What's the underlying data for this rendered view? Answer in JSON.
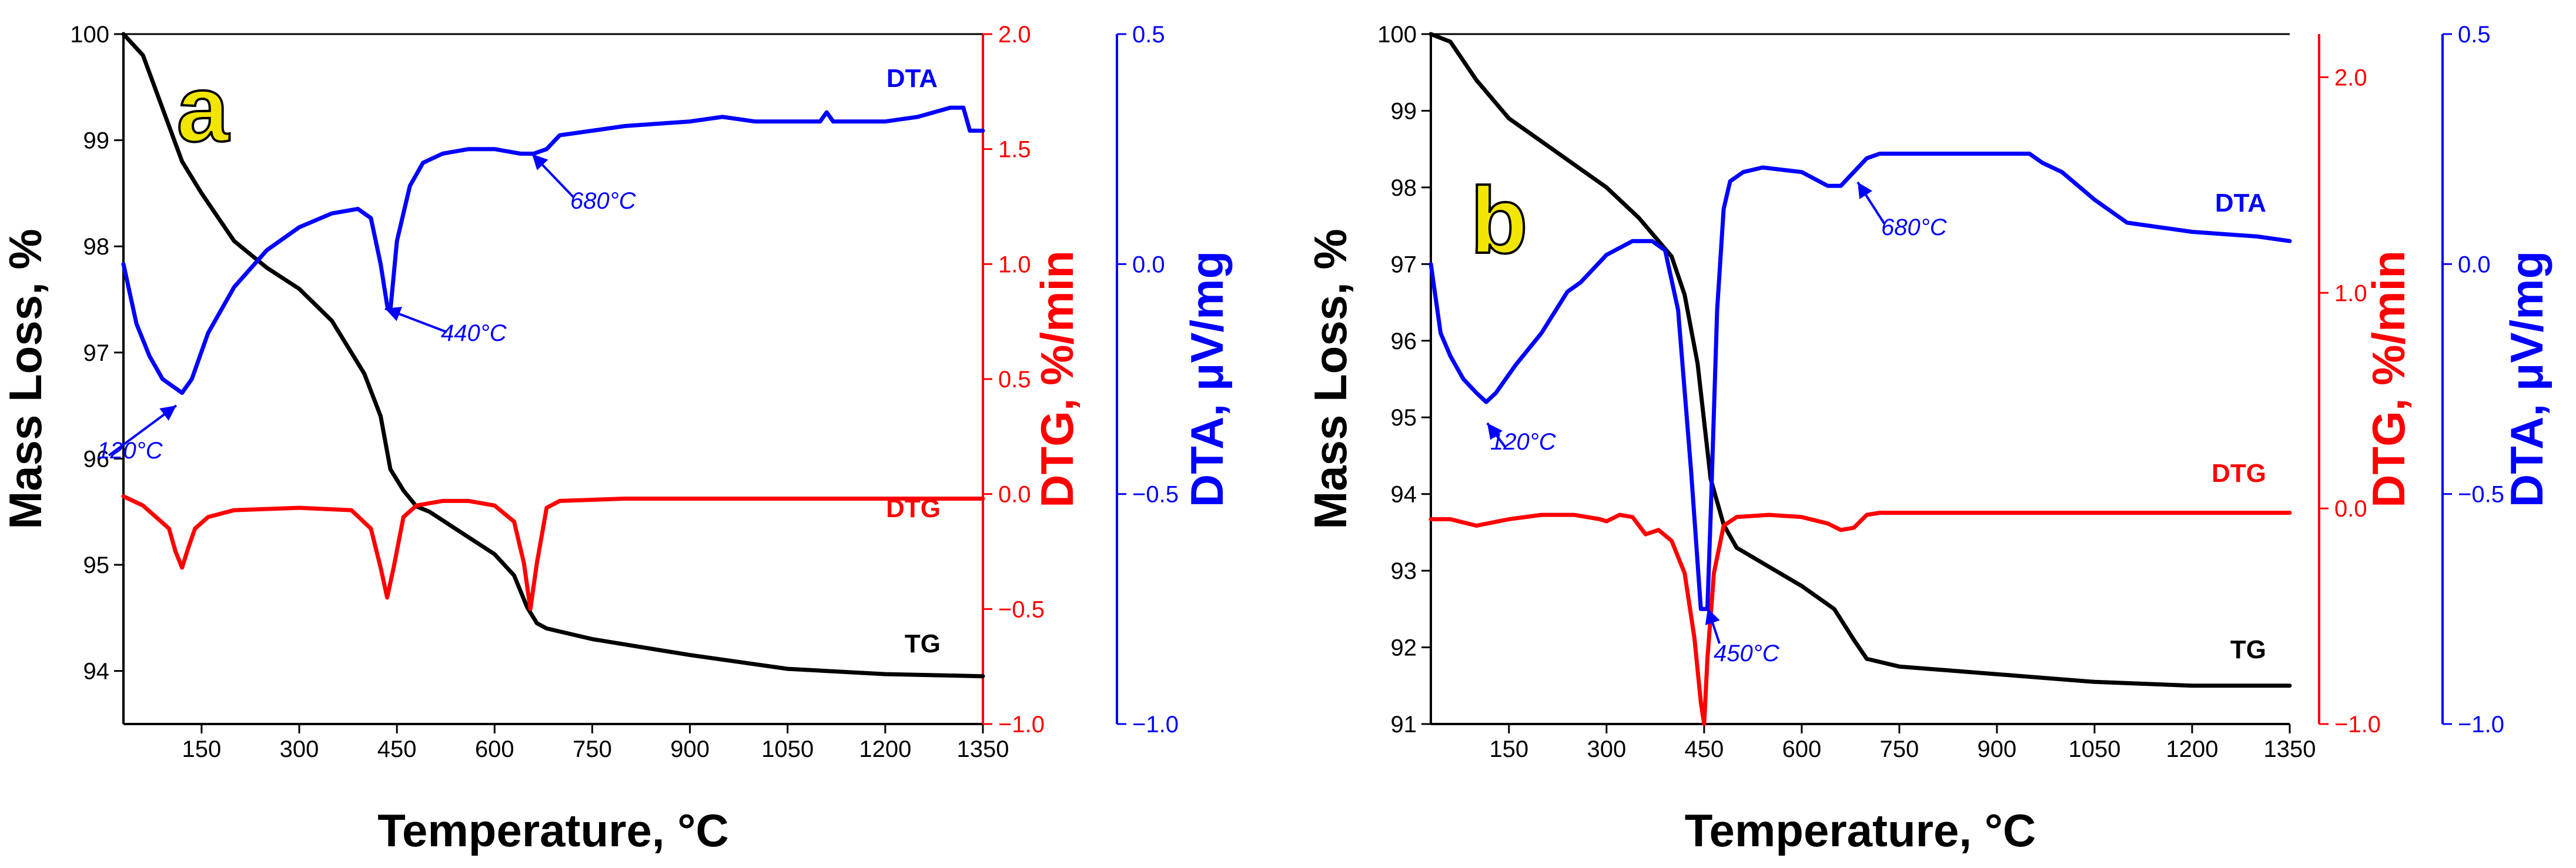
{
  "colors": {
    "tg": "#000000",
    "dtg": "#ff0000",
    "dta": "#0000ff",
    "panel_letter": "#f2e600"
  },
  "chart_data": [
    {
      "type": "line",
      "panel_label": "a",
      "xlabel": "Temperature, °C",
      "ylabels": {
        "tg": "Mass Loss, %",
        "dtg": "DTG, %/min",
        "dta": "DTA, μV/mg"
      },
      "xlim": [
        30,
        1350
      ],
      "x_ticks": [
        150,
        300,
        450,
        600,
        750,
        900,
        1050,
        1200,
        1350
      ],
      "tg_axis": {
        "ylim": [
          93.5,
          100
        ],
        "ticks": [
          94,
          95,
          96,
          97,
          98,
          99,
          100
        ]
      },
      "dtg_axis": {
        "ylim": [
          -1.0,
          2.0
        ],
        "ticks": [
          -1.0,
          -0.5,
          0.0,
          0.5,
          1.0,
          1.5,
          2.0
        ],
        "tick_labels": [
          "−1.0",
          "−0.5",
          "0.0",
          "0.5",
          "1.0",
          "1.5",
          "2.0"
        ]
      },
      "dta_axis": {
        "ylim": [
          -1.0,
          0.5
        ],
        "ticks": [
          -1.0,
          -0.5,
          0.0,
          0.5
        ],
        "tick_labels": [
          "−1.0",
          "−0.5",
          "0.0",
          "0.5"
        ]
      },
      "series": [
        {
          "name": "TG",
          "axis": "tg",
          "x": [
            30,
            60,
            90,
            120,
            150,
            200,
            250,
            300,
            350,
            400,
            425,
            440,
            460,
            480,
            500,
            550,
            600,
            630,
            650,
            665,
            680,
            750,
            900,
            1050,
            1200,
            1350
          ],
          "y": [
            100,
            99.8,
            99.3,
            98.8,
            98.5,
            98.05,
            97.8,
            97.6,
            97.3,
            96.8,
            96.4,
            95.9,
            95.7,
            95.55,
            95.5,
            95.3,
            95.1,
            94.9,
            94.6,
            94.45,
            94.4,
            94.3,
            94.15,
            94.02,
            93.97,
            93.95
          ]
        },
        {
          "name": "DTG",
          "axis": "dtg",
          "x": [
            30,
            60,
            100,
            110,
            120,
            130,
            140,
            160,
            200,
            300,
            380,
            410,
            425,
            435,
            445,
            460,
            480,
            520,
            560,
            600,
            630,
            645,
            655,
            665,
            680,
            700,
            800,
            1000,
            1350
          ],
          "y": [
            -0.01,
            -0.05,
            -0.15,
            -0.25,
            -0.32,
            -0.23,
            -0.15,
            -0.1,
            -0.07,
            -0.06,
            -0.07,
            -0.15,
            -0.32,
            -0.45,
            -0.32,
            -0.1,
            -0.05,
            -0.03,
            -0.03,
            -0.05,
            -0.12,
            -0.3,
            -0.5,
            -0.3,
            -0.06,
            -0.03,
            -0.02,
            -0.02,
            -0.02
          ]
        },
        {
          "name": "DTA",
          "axis": "dta",
          "x": [
            30,
            50,
            70,
            90,
            110,
            120,
            135,
            160,
            200,
            250,
            300,
            350,
            390,
            410,
            425,
            435,
            440,
            450,
            470,
            490,
            520,
            560,
            600,
            640,
            660,
            680,
            700,
            750,
            800,
            900,
            950,
            1000,
            1100,
            1110,
            1120,
            1200,
            1250,
            1300,
            1320,
            1330,
            1350
          ],
          "y": [
            0.0,
            -0.13,
            -0.2,
            -0.25,
            -0.27,
            -0.28,
            -0.25,
            -0.15,
            -0.05,
            0.03,
            0.08,
            0.11,
            0.12,
            0.1,
            0.0,
            -0.09,
            -0.1,
            0.05,
            0.17,
            0.22,
            0.24,
            0.25,
            0.25,
            0.24,
            0.24,
            0.25,
            0.28,
            0.29,
            0.3,
            0.31,
            0.32,
            0.31,
            0.31,
            0.33,
            0.31,
            0.31,
            0.32,
            0.34,
            0.34,
            0.29,
            0.29
          ]
        }
      ],
      "series_labels": {
        "dta": "DTA",
        "dtg": "DTG",
        "tg": "TG"
      },
      "annotations": [
        {
          "text": "120°C",
          "x": 120,
          "series": "DTA"
        },
        {
          "text": "440°C",
          "x": 440,
          "series": "DTA"
        },
        {
          "text": "680°C",
          "x": 680,
          "series": "DTA"
        }
      ]
    },
    {
      "type": "line",
      "panel_label": "b",
      "xlabel": "Temperature, °C",
      "ylabels": {
        "tg": "Mass Loss, %",
        "dtg": "DTG, %/min",
        "dta": "DTA, μV/mg"
      },
      "xlim": [
        30,
        1350
      ],
      "x_ticks": [
        150,
        300,
        450,
        600,
        750,
        900,
        1050,
        1200,
        1350
      ],
      "tg_axis": {
        "ylim": [
          91,
          100
        ],
        "ticks": [
          91,
          92,
          93,
          94,
          95,
          96,
          97,
          98,
          99,
          100
        ]
      },
      "dtg_axis": {
        "ylim": [
          -1.0,
          2.2
        ],
        "ticks": [
          -1.0,
          0.0,
          1.0,
          2.0
        ],
        "tick_labels": [
          "−1.0",
          "0.0",
          "1.0",
          "2.0"
        ]
      },
      "dta_axis": {
        "ylim": [
          -1.0,
          0.5
        ],
        "ticks": [
          -1.0,
          -0.5,
          0.0,
          0.5
        ],
        "tick_labels": [
          "−1.0",
          "−0.5",
          "0.0",
          "0.5"
        ]
      },
      "series": [
        {
          "name": "TG",
          "axis": "tg",
          "x": [
            30,
            60,
            100,
            150,
            200,
            250,
            300,
            350,
            400,
            420,
            440,
            460,
            480,
            500,
            550,
            600,
            650,
            680,
            700,
            750,
            900,
            1050,
            1200,
            1350
          ],
          "y": [
            100,
            99.9,
            99.4,
            98.9,
            98.6,
            98.3,
            98.0,
            97.6,
            97.1,
            96.6,
            95.7,
            94.2,
            93.6,
            93.3,
            93.05,
            92.8,
            92.5,
            92.1,
            91.85,
            91.75,
            91.65,
            91.55,
            91.5,
            91.5
          ]
        },
        {
          "name": "DTG",
          "axis": "dtg",
          "x": [
            30,
            60,
            100,
            150,
            200,
            250,
            290,
            300,
            320,
            340,
            360,
            380,
            400,
            420,
            435,
            445,
            450,
            455,
            465,
            480,
            500,
            550,
            600,
            640,
            660,
            680,
            700,
            720,
            800,
            1000,
            1350
          ],
          "y": [
            -0.05,
            -0.05,
            -0.08,
            -0.05,
            -0.03,
            -0.03,
            -0.05,
            -0.06,
            -0.03,
            -0.04,
            -0.12,
            -0.1,
            -0.15,
            -0.3,
            -0.6,
            -0.9,
            -1.0,
            -0.7,
            -0.3,
            -0.08,
            -0.04,
            -0.03,
            -0.04,
            -0.07,
            -0.1,
            -0.09,
            -0.03,
            -0.02,
            -0.02,
            -0.02,
            -0.02
          ]
        },
        {
          "name": "DTA",
          "axis": "dta",
          "x": [
            30,
            45,
            60,
            80,
            100,
            115,
            130,
            160,
            200,
            240,
            260,
            300,
            340,
            370,
            390,
            410,
            430,
            445,
            455,
            460,
            470,
            480,
            490,
            510,
            540,
            600,
            640,
            660,
            680,
            700,
            720,
            800,
            900,
            950,
            970,
            1000,
            1050,
            1100,
            1200,
            1300,
            1350
          ],
          "y": [
            0.0,
            -0.15,
            -0.2,
            -0.25,
            -0.28,
            -0.3,
            -0.28,
            -0.22,
            -0.15,
            -0.06,
            -0.04,
            0.02,
            0.05,
            0.05,
            0.03,
            -0.1,
            -0.45,
            -0.75,
            -0.75,
            -0.55,
            -0.1,
            0.12,
            0.18,
            0.2,
            0.21,
            0.2,
            0.17,
            0.17,
            0.2,
            0.23,
            0.24,
            0.24,
            0.24,
            0.24,
            0.22,
            0.2,
            0.14,
            0.09,
            0.07,
            0.06,
            0.05
          ]
        }
      ],
      "series_labels": {
        "dta": "DTA",
        "dtg": "DTG",
        "tg": "TG"
      },
      "annotations": [
        {
          "text": "120°C",
          "x": 110,
          "series": "DTA"
        },
        {
          "text": "450°C",
          "x": 450,
          "series": "DTA"
        },
        {
          "text": "680°C",
          "x": 680,
          "series": "DTA"
        }
      ]
    }
  ]
}
